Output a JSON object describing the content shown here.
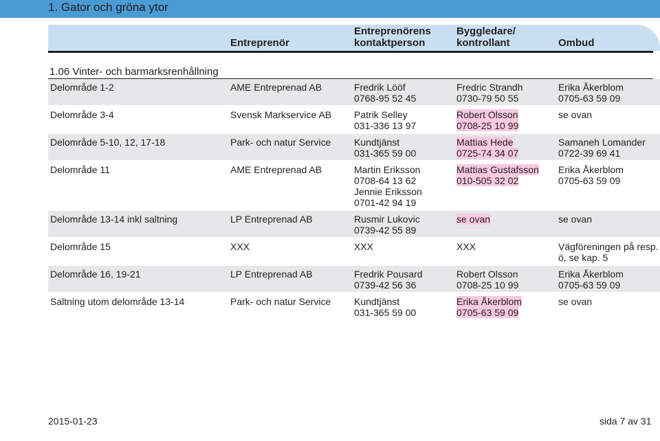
{
  "title": "1. Gator och gröna ytor",
  "columns": {
    "entreprenor": "Entreprenör",
    "kontakt_line1": "Entreprenörens",
    "kontakt_line2": "kontaktperson",
    "bygg_line1": "Byggledare/",
    "bygg_line2": "kontrollant",
    "ombud": "Ombud"
  },
  "section": "1.06 Vinter- och barmarksrenhållning",
  "rows": [
    {
      "area": "Delområde 1-2",
      "contractor": "AME Entreprenad AB",
      "contact": [
        "Fredrik Lööf",
        "0768-95 52 45"
      ],
      "supervisor": [
        "Fredric Strandh",
        "0730-79 50 55"
      ],
      "agent": [
        "Erika Åkerblom",
        "0705-63 59 09"
      ]
    },
    {
      "area": "Delområde 3-4",
      "contractor": "Svensk Markservice AB",
      "contact": [
        "Patrik Selley",
        "031-336 13 97"
      ],
      "supervisor": [
        "Robert Olsson",
        "0708-25 10 99"
      ],
      "agent": [
        "se ovan"
      ]
    },
    {
      "area": "Delområde 5-10, 12, 17-18",
      "contractor": "Park- och natur Service",
      "contact": [
        "Kundtjänst",
        "031-365 59 00"
      ],
      "supervisor": [
        "Mattias Hede",
        "0725-74 34 07"
      ],
      "agent": [
        "Samaneh Lomander",
        "0722-39 69 41"
      ]
    },
    {
      "area": "Delområde 11",
      "contractor": "AME Entreprenad AB",
      "contact": [
        "Martin Eriksson",
        "0708-64 13 62",
        "Jennie Eriksson",
        "0701-42 94 19"
      ],
      "supervisor": [
        "Mattias Gustafsson",
        "010-505 32 02"
      ],
      "agent": [
        "Erika Åkerblom",
        "0705-63 59 09"
      ]
    },
    {
      "area": "Delområde 13-14 inkl saltning",
      "contractor": "LP Entreprenad AB",
      "contact": [
        "Rusmir Lukovic",
        "0739-42 55 89"
      ],
      "supervisor": [
        "se ovan"
      ],
      "agent": [
        "se ovan"
      ]
    },
    {
      "area": "Delområde 15",
      "contractor": "XXX",
      "contact": [
        "XXX"
      ],
      "supervisor": [
        "XXX"
      ],
      "agent": [
        "Vägföreningen på resp.",
        "ö, se kap. 5"
      ]
    },
    {
      "area": "Delområde 16, 19-21",
      "contractor": "LP Entreprenad AB",
      "contact": [
        "Fredrik Pousard",
        "0739-42 56 36"
      ],
      "supervisor": [
        "Robert Olsson",
        "0708-25 10 99"
      ],
      "agent": [
        "Erika Åkerblom",
        "0705-63 59 09"
      ]
    },
    {
      "area": "Saltning utom delområde 13-14",
      "contractor": "Park- och natur Service",
      "contact": [
        "Kundtjänst",
        "031-365 59 00"
      ],
      "supervisor": [
        "Erika Åkerblom",
        "0705-63 59 09"
      ],
      "agent": [
        "se ovan"
      ]
    }
  ],
  "footer": {
    "date": "2015-01-23",
    "page": "sida 7 av 31"
  },
  "colors": {
    "title_bar": "#4a9ad4",
    "header_panel": "#c9dff1",
    "row_shade": "#e6e7e8",
    "highlight": "#f9c9e0"
  }
}
